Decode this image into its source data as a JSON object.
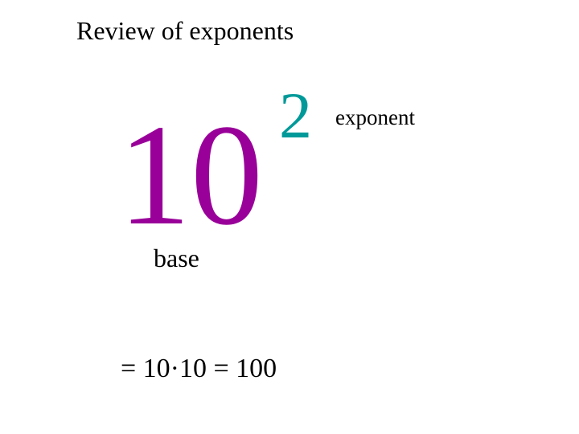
{
  "title": "Review of exponents",
  "base_value": "10",
  "exponent_value": "2",
  "base_label": "base",
  "exponent_label": "exponent",
  "equation": "= 10·10 = 100",
  "colors": {
    "base": "#990099",
    "exponent": "#009999",
    "text": "#000000",
    "background": "#ffffff"
  }
}
